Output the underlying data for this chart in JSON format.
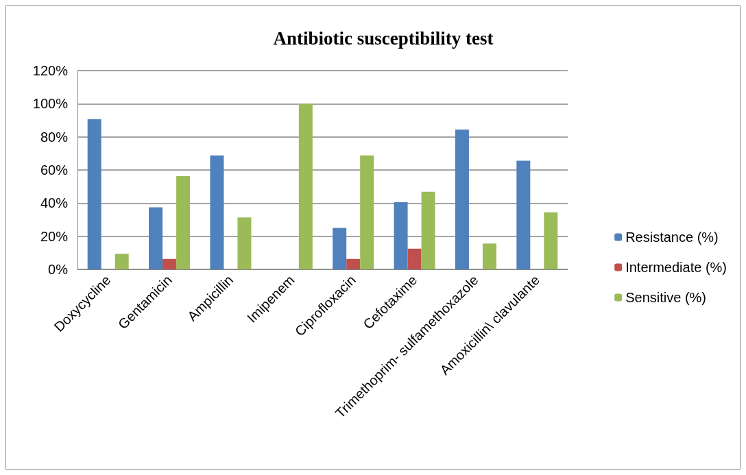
{
  "chart_data": {
    "type": "bar",
    "title": "Antibiotic susceptibility test",
    "categories": [
      "Doxycycline",
      "Gentamicin",
      "Ampicillin",
      "Imipenem",
      "Ciprofloxacin",
      "Cefotaxime",
      "Trimethoprim- sulfamethoxazole",
      "Amoxicillin\\ clavulante"
    ],
    "series": [
      {
        "name": "Resistance (%)",
        "color": "#4f81bd",
        "values": [
          90.6,
          37.5,
          68.8,
          0,
          25,
          40.6,
          84.4,
          65.6
        ]
      },
      {
        "name": "Intermediate (%)",
        "color": "#c0504d",
        "values": [
          0,
          6.3,
          0,
          0,
          6.3,
          12.5,
          0,
          0
        ]
      },
      {
        "name": "Sensitive (%)",
        "color": "#9bbb59",
        "values": [
          9.4,
          56.3,
          31.3,
          100,
          68.8,
          46.9,
          15.6,
          34.4
        ]
      }
    ],
    "ylim": [
      0,
      120
    ],
    "yticks": [
      {
        "value": 0,
        "label": "0%"
      },
      {
        "value": 20,
        "label": "20%"
      },
      {
        "value": 40,
        "label": "40%"
      },
      {
        "value": 60,
        "label": "60%"
      },
      {
        "value": 80,
        "label": "80%"
      },
      {
        "value": 100,
        "label": "100%"
      },
      {
        "value": 120,
        "label": "120%"
      }
    ],
    "grid": "y",
    "legend": "right"
  }
}
